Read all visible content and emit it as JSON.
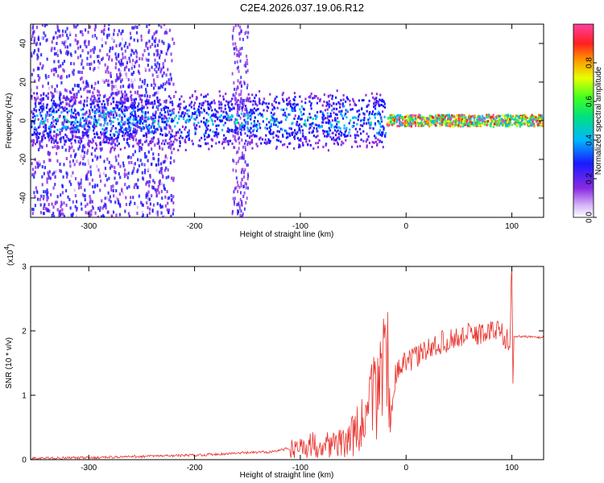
{
  "title": "C2E4.2026.037.19.06.R12",
  "chart_data": [
    {
      "type": "heatmap",
      "title": "C2E4.2026.037.19.06.R12",
      "xlabel": "Height of straight line (km)",
      "ylabel": "Frequency (Hz)",
      "xlim": [
        -355,
        130
      ],
      "ylim": [
        -50,
        50
      ],
      "x_ticks": [
        -300,
        -200,
        -100,
        0,
        100
      ],
      "y_ticks": [
        -40,
        -20,
        0,
        20,
        40
      ],
      "colorbar": {
        "label": "Normalized spectral amplitude",
        "range": [
          0,
          1
        ],
        "ticks": [
          0.0,
          0.2,
          0.4,
          0.6,
          0.8
        ]
      },
      "description_points": {
        "ridge_center_hz": 0,
        "strong_segment_x": [
          -20,
          100
        ],
        "broadband_region_x": [
          -355,
          -220
        ],
        "secondary_band_x": [
          -165,
          -150
        ]
      }
    },
    {
      "type": "line",
      "xlabel": "Height of straight line (km)",
      "ylabel": "SNR (10 * v/v)",
      "y_multiplier": "(x10",
      "y_multiplier_exp": "4",
      "y_multiplier_close": ")",
      "xlim": [
        -355,
        130
      ],
      "ylim": [
        0,
        3
      ],
      "x_ticks": [
        -300,
        -200,
        -100,
        0,
        100
      ],
      "y_ticks": [
        0,
        1,
        2,
        3
      ],
      "series": [
        {
          "color": "#e8302a",
          "x": [
            -355,
            -300,
            -250,
            -200,
            -160,
            -130,
            -100,
            -80,
            -60,
            -45,
            -35,
            -28,
            -22,
            -18,
            -15,
            -10,
            -5,
            0,
            10,
            20,
            30,
            40,
            50,
            60,
            70,
            80,
            90,
            98,
            100,
            101,
            102,
            110,
            120,
            130
          ],
          "y": [
            0.02,
            0.03,
            0.05,
            0.07,
            0.1,
            0.12,
            0.2,
            0.25,
            0.25,
            0.45,
            0.7,
            1.1,
            1.5,
            1.7,
            0.6,
            1.3,
            1.45,
            1.5,
            1.6,
            1.7,
            1.8,
            1.85,
            1.9,
            1.95,
            1.95,
            2.0,
            2.0,
            1.8,
            3.0,
            1.2,
            1.9,
            1.92,
            1.9,
            1.9
          ]
        }
      ]
    }
  ]
}
